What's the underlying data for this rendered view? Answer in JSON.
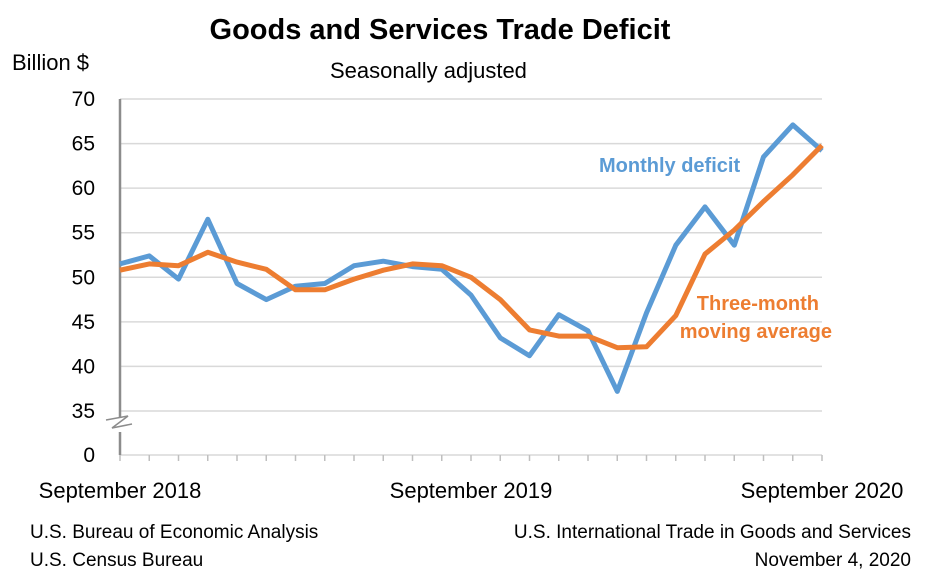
{
  "chart_data": {
    "type": "line",
    "title": "Goods and Services Trade Deficit",
    "subtitle": "Seasonally adjusted",
    "ylabel": "Billion $",
    "xlabel": "",
    "ylim": [
      35,
      70
    ],
    "y_axis_break": "35 to 0",
    "yticks": [
      "70",
      "65",
      "60",
      "55",
      "50",
      "45",
      "40",
      "35",
      "0"
    ],
    "xtick_labels": [
      "September 2018",
      "September 2019",
      "September 2020"
    ],
    "grid": "horizontal",
    "x": [
      "2018-09",
      "2018-10",
      "2018-11",
      "2018-12",
      "2019-01",
      "2019-02",
      "2019-03",
      "2019-04",
      "2019-05",
      "2019-06",
      "2019-07",
      "2019-08",
      "2019-09",
      "2019-10",
      "2019-11",
      "2019-12",
      "2020-01",
      "2020-02",
      "2020-03",
      "2020-04",
      "2020-05",
      "2020-06",
      "2020-07",
      "2020-08",
      "2020-09"
    ],
    "series": [
      {
        "name": "Monthly deficit",
        "color": "#5B9BD5",
        "values": [
          51.5,
          52.4,
          49.8,
          56.5,
          49.3,
          47.5,
          49.0,
          49.3,
          51.3,
          51.8,
          51.2,
          50.9,
          48.0,
          43.2,
          41.2,
          45.8,
          44.0,
          37.2,
          46.0,
          53.6,
          57.9,
          53.6,
          63.5,
          67.1,
          64.2
        ]
      },
      {
        "name": "Three-month moving average",
        "label_lines": [
          "Three-month",
          "moving average"
        ],
        "color": "#ED7D31",
        "values": [
          50.8,
          51.5,
          51.3,
          52.8,
          51.7,
          50.9,
          48.6,
          48.6,
          49.8,
          50.8,
          51.5,
          51.3,
          50.0,
          47.5,
          44.1,
          43.4,
          43.4,
          42.1,
          42.2,
          45.7,
          52.6,
          55.3,
          58.5,
          61.5,
          64.8
        ]
      }
    ]
  },
  "footer": {
    "left1": "U.S. Bureau of Economic Analysis",
    "left2": "U.S. Census Bureau",
    "right1": "U.S. International Trade in Goods and Services",
    "right2": "November 4, 2020"
  }
}
